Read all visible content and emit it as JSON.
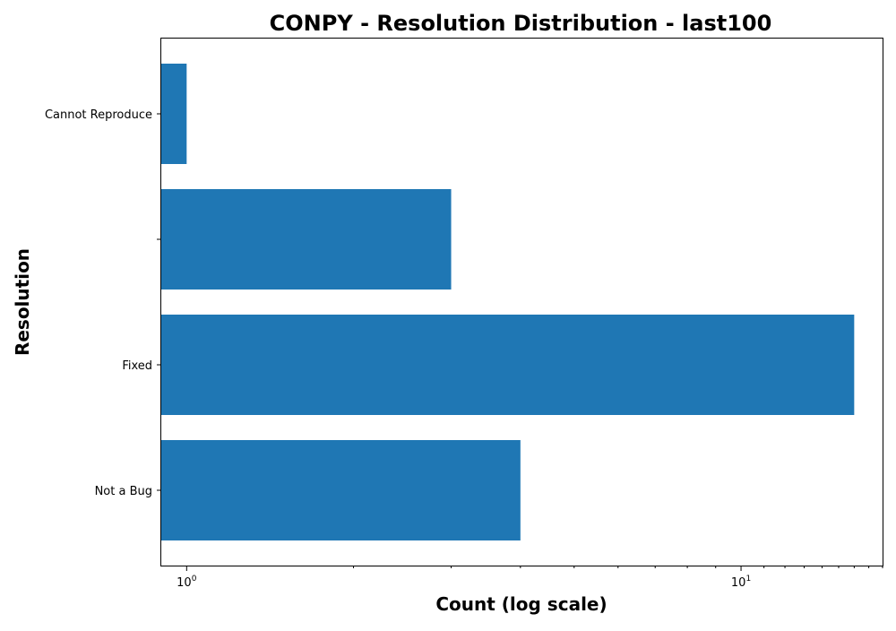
{
  "chart_data": {
    "type": "bar",
    "orientation": "horizontal",
    "title": "CONPY - Resolution Distribution - last100",
    "xlabel": "Count (log scale)",
    "ylabel": "Resolution",
    "x_scale": "log",
    "xlim": [
      0.9,
      18
    ],
    "x_tick_values": [
      1,
      10
    ],
    "x_tick_labels": [
      {
        "base": "10",
        "exp": "0"
      },
      {
        "base": "10",
        "exp": "1"
      }
    ],
    "categories": [
      "Cannot Reproduce",
      "",
      "Fixed",
      "Not a Bug"
    ],
    "values": [
      1,
      3,
      16,
      4
    ],
    "bar_color": "#1f77b4",
    "grid": false,
    "legend": "none"
  }
}
